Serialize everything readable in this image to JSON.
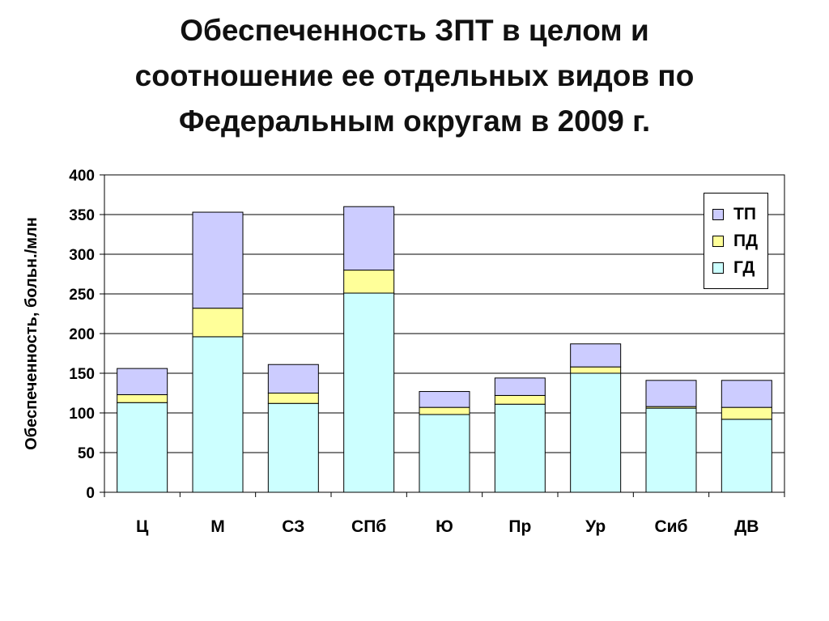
{
  "title": "Обеспеченность ЗПТ в целом и\nсоотношение ее отдельных видов по\nФедеральным округам в 2009 г.",
  "chart_data": {
    "type": "bar",
    "stacked": true,
    "ylabel": "Обеспеченность, больн./млн",
    "xlabel": "",
    "ylim": [
      0,
      400
    ],
    "yticks": [
      0,
      50,
      100,
      150,
      200,
      250,
      300,
      350,
      400
    ],
    "grid": true,
    "legend_position": "top-right",
    "categories": [
      "Ц",
      "М",
      "СЗ",
      "СПб",
      "Ю",
      "Пр",
      "Ур",
      "Сиб",
      "ДВ"
    ],
    "series": [
      {
        "name": "ГД",
        "color": "#ccffff",
        "values": [
          113,
          196,
          112,
          251,
          98,
          111,
          150,
          106,
          92
        ]
      },
      {
        "name": "ПД",
        "color": "#ffff99",
        "values": [
          10,
          36,
          13,
          29,
          9,
          11,
          8,
          2,
          15
        ]
      },
      {
        "name": "ТП",
        "color": "#ccccff",
        "values": [
          33,
          121,
          36,
          80,
          20,
          22,
          29,
          33,
          34
        ]
      }
    ]
  },
  "legend": {
    "items": [
      {
        "label": "ТП",
        "color": "#ccccff"
      },
      {
        "label": "ПД",
        "color": "#ffff99"
      },
      {
        "label": "ГД",
        "color": "#ccffff"
      }
    ]
  }
}
